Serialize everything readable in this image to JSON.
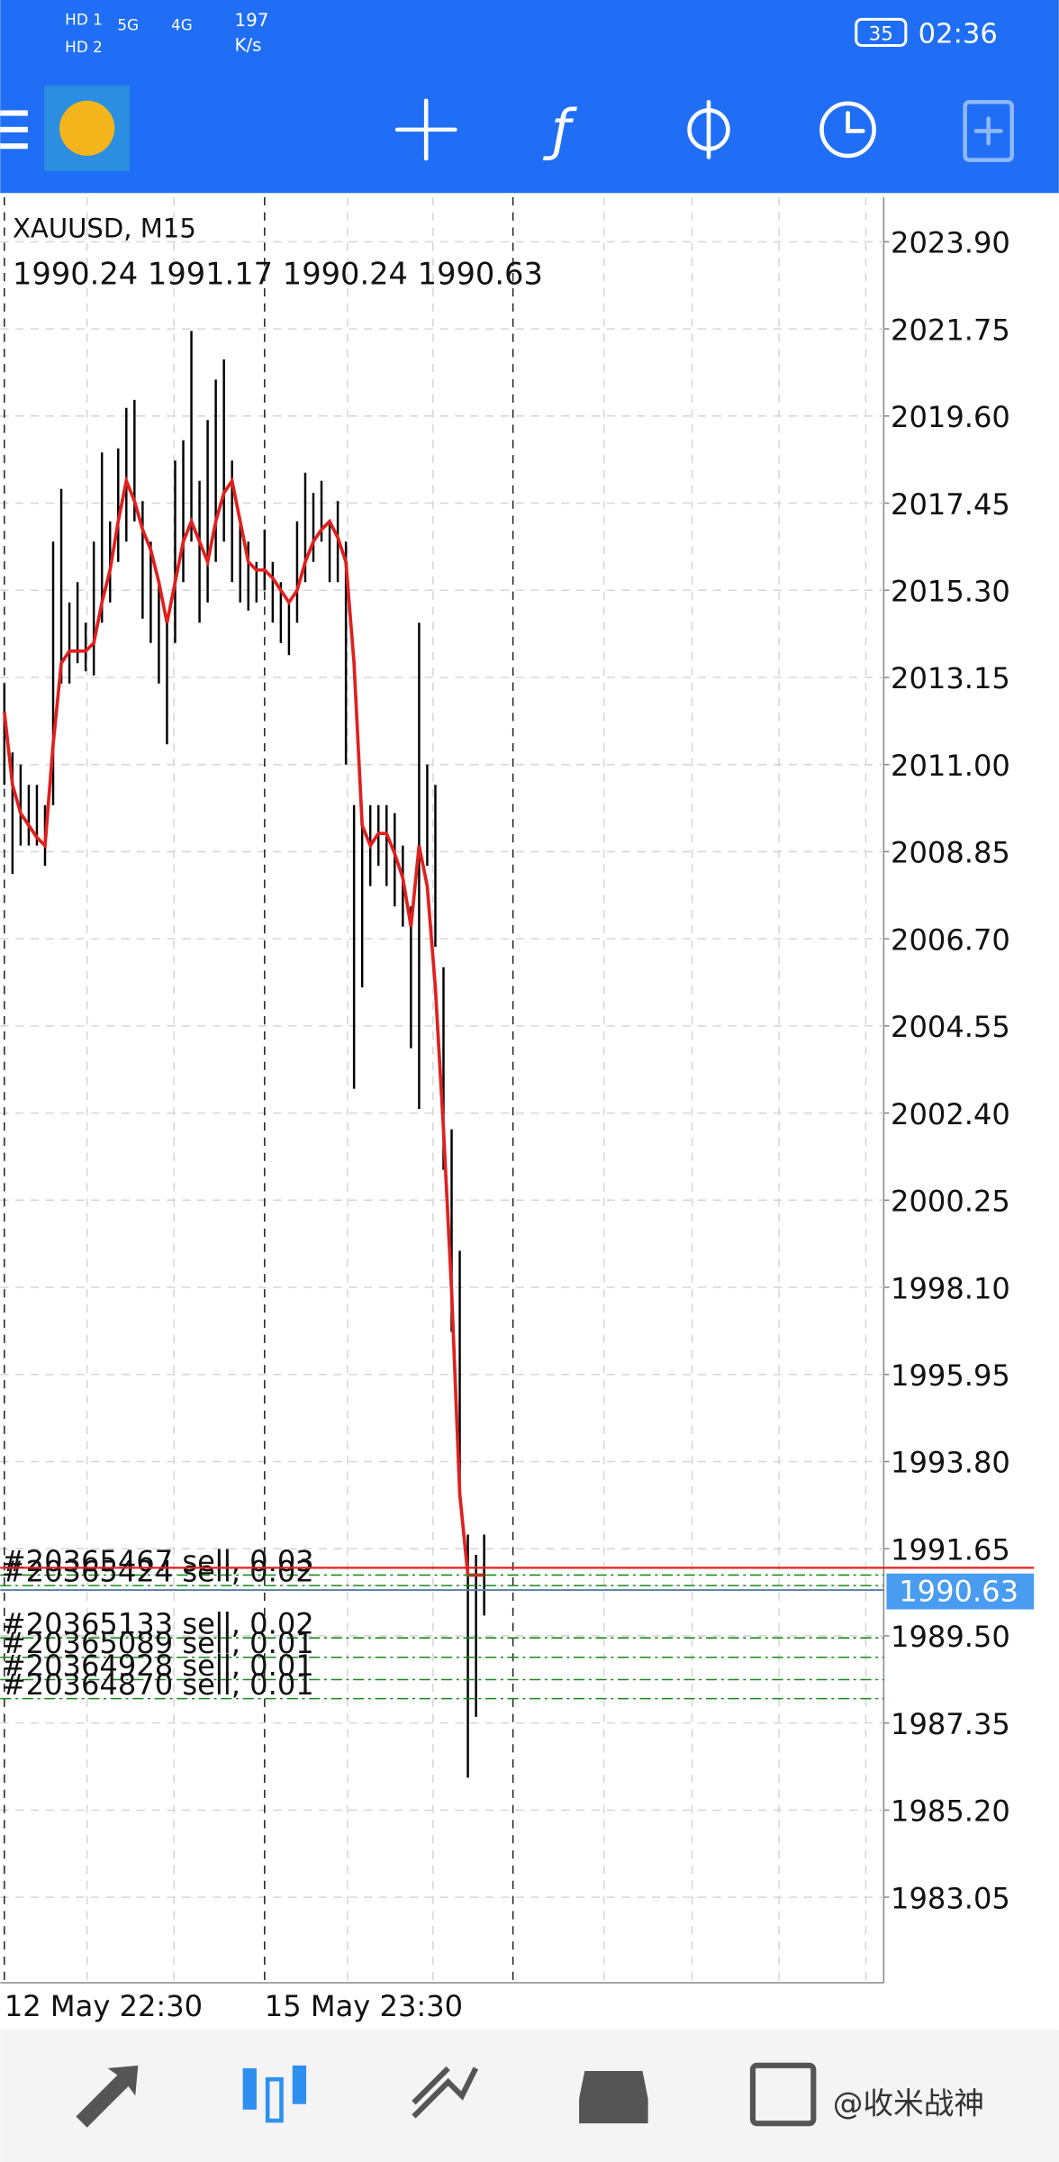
{
  "status_bar": {
    "network": [
      "HD 1",
      "HD 2",
      "5G",
      "4G"
    ],
    "speed": "197",
    "speed_unit": "K/s",
    "battery": "35",
    "time": "02:36"
  },
  "chart_data": {
    "type": "ohlc",
    "symbol": "XAUUSD, M15",
    "ohlc": [
      1990.24,
      1991.17,
      1990.24,
      1990.63
    ],
    "bar_color": "#000000",
    "highs": [
      2013.0,
      2011.3,
      2011.0,
      2010.5,
      2010.5,
      2010.0,
      2016.5,
      2017.8,
      2015.0,
      2015.5,
      2014.5,
      2016.5,
      2018.7,
      2017.0,
      2018.8,
      2019.8,
      2020.0,
      2017.5,
      2016.5,
      2015.5,
      2014.5,
      2018.5,
      2019.0,
      2021.7,
      2018.0,
      2019.5,
      2020.5,
      2021.0,
      2018.5,
      2017.0,
      2016.5,
      2016.0,
      2016.8,
      2016.0,
      2015.5,
      2015.0,
      2017.0,
      2018.2,
      2017.7,
      2018.0,
      2017.0,
      2017.5,
      2016.5,
      2010.0,
      2009.5,
      2010.0,
      2010.0,
      2010.0,
      2009.8,
      2009.0,
      2007.5,
      2014.5,
      2011.0,
      2010.5,
      2006.0,
      2002.0,
      1999.0,
      1992.0,
      1991.5,
      1992.0
    ],
    "lows": [
      2010.5,
      2008.3,
      2009.0,
      2009.0,
      2009.0,
      2008.5,
      2010.0,
      2013.0,
      2013.0,
      2013.5,
      2013.3,
      2013.2,
      2014.5,
      2015.0,
      2016.0,
      2016.5,
      2017.0,
      2014.6,
      2014.0,
      2013.0,
      2011.5,
      2014.0,
      2015.5,
      2016.5,
      2014.5,
      2015.0,
      2016.0,
      2016.5,
      2015.5,
      2015.0,
      2014.8,
      2015.0,
      2015.3,
      2014.5,
      2014.0,
      2013.7,
      2014.5,
      2015.5,
      2016.0,
      2016.5,
      2015.5,
      2015.5,
      2011.0,
      2003.0,
      2005.5,
      2008.0,
      2008.5,
      2008.0,
      2007.5,
      2007.0,
      2004.0,
      2002.5,
      2008.5,
      2006.5,
      2001.0,
      1997.0,
      1993.0,
      1986.0,
      1987.5,
      1990.0
    ],
    "ma": {
      "color": "#e0201e",
      "values": [
        2012.3,
        2010.5,
        2009.8,
        2009.5,
        2009.2,
        2009.0,
        2011.5,
        2013.5,
        2013.8,
        2013.8,
        2013.8,
        2014.0,
        2015.0,
        2015.8,
        2017.0,
        2018.0,
        2017.5,
        2016.8,
        2016.3,
        2015.5,
        2014.5,
        2015.5,
        2016.5,
        2017.0,
        2016.5,
        2016.0,
        2017.0,
        2017.7,
        2018.0,
        2017.0,
        2016.0,
        2015.8,
        2015.8,
        2015.6,
        2015.3,
        2015.0,
        2015.3,
        2016.0,
        2016.5,
        2016.8,
        2017.0,
        2016.6,
        2016.0,
        2013.5,
        2009.5,
        2009.0,
        2009.3,
        2009.3,
        2008.8,
        2008.2,
        2007.0,
        2009.0,
        2008.0,
        2005.5,
        2002.0,
        1998.0,
        1993.0,
        1991.0,
        1991.0,
        1991.0
      ]
    },
    "ylim": [
      1980.94,
      2025.0
    ],
    "yticks": [
      {
        "value": 2023.9,
        "label": "2023.90"
      },
      2021.75,
      {
        "value": 2019.6,
        "label": "2019.60"
      },
      2017.45,
      {
        "value": 2015.3,
        "label": "2015.30"
      },
      2013.15,
      {
        "value": 2011.0,
        "label": "2011.00"
      },
      2008.85,
      {
        "value": 2006.7,
        "label": "2006.70"
      },
      2004.55,
      {
        "value": 2002.4,
        "label": "2002.40"
      },
      2000.25,
      {
        "value": 1998.1,
        "label": "1998.10"
      },
      1995.95,
      {
        "value": 1993.8,
        "label": "1993.80"
      },
      1991.65,
      {
        "value": 1989.5,
        "label": "1989.50"
      },
      1987.35,
      {
        "value": 1985.2,
        "label": "1985.20"
      },
      1983.05
    ],
    "xticks": [
      {
        "value": 0,
        "label": "12 May 22:30"
      },
      {
        "value": 32,
        "label": "15 May 23:30"
      }
    ],
    "grid": true,
    "last_price": 1990.63,
    "ask_price": 1991.18,
    "orders": [
      {
        "label": "#20365467 sell, 0.03",
        "price": 1991.0
      },
      {
        "label": "#20365424 sell, 0.02",
        "price": 1990.74
      },
      {
        "label": "#20365133 sell, 0.02",
        "price": 1989.45
      },
      {
        "label": "#20365089 sell, 0.01",
        "price": 1988.97
      },
      {
        "label": "#20364928 sell, 0.01",
        "price": 1988.42
      },
      {
        "label": "#20364870 sell, 0.01",
        "price": 1987.95
      }
    ]
  },
  "watermark": "@收米战神"
}
